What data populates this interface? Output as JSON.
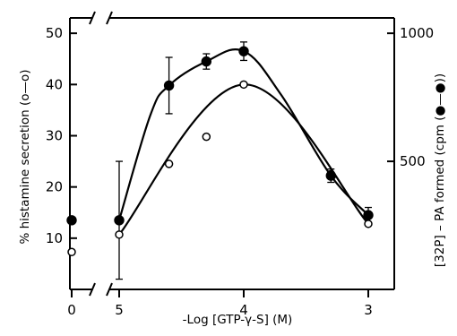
{
  "chart_data": {
    "type": "line",
    "xlabel": "-Log [GTP-γ-S] (M)",
    "ylabel_left": "% histamine secretion (o—o)",
    "ylabel_right": "[32P] – PA formed (cpm (●—●))",
    "x_ticks": [
      {
        "value": 0,
        "label": "0"
      },
      {
        "value": 5,
        "label": "5"
      },
      {
        "value": 4,
        "label": "4"
      },
      {
        "value": 3,
        "label": "3"
      }
    ],
    "x_axis_note": "axis broken between 0 and 5; -Log scale decreases left to right",
    "y_left_ticks": [
      10,
      20,
      30,
      40,
      50
    ],
    "y_left_lim": [
      0,
      53
    ],
    "y_right_ticks": [
      500,
      1000
    ],
    "y_right_lim": [
      0,
      1060
    ],
    "series": [
      {
        "name": "histamine secretion (o—o)",
        "marker": "open-circle",
        "axis": "left",
        "points": [
          {
            "x": 0,
            "y": 7.3
          },
          {
            "x": 5,
            "y": 10.7
          },
          {
            "x": 4.6,
            "y": 24.5
          },
          {
            "x": 4.3,
            "y": 29.8
          },
          {
            "x": 4,
            "y": 40
          },
          {
            "x": 3.3,
            "y": 22.5
          },
          {
            "x": 3,
            "y": 12.8
          }
        ],
        "curve_points": [
          {
            "x": 5,
            "y": 10.7
          },
          {
            "x": 4,
            "y": 40
          },
          {
            "x": 3,
            "y": 12.8
          }
        ]
      },
      {
        "name": "[32P]-PA formed (●—●)",
        "marker": "filled-circle",
        "axis": "left",
        "points": [
          {
            "x": 0,
            "y": 13.5
          },
          {
            "x": 5,
            "y": 13.5,
            "err": 11.5
          },
          {
            "x": 4.6,
            "y": 39.8,
            "err": 5.5
          },
          {
            "x": 4.3,
            "y": 44.5,
            "err": 1.5
          },
          {
            "x": 4,
            "y": 46.5,
            "err": 1.8
          },
          {
            "x": 3.3,
            "y": 22.2,
            "err": 1.3
          },
          {
            "x": 3,
            "y": 14.5,
            "err": 1.5
          }
        ],
        "curve_points": [
          {
            "x": 5,
            "y": 13.5
          },
          {
            "x": 4.75,
            "y": 34
          },
          {
            "x": 4.6,
            "y": 39.8
          },
          {
            "x": 4.3,
            "y": 44.5
          },
          {
            "x": 4,
            "y": 46.5
          },
          {
            "x": 3.7,
            "y": 38
          },
          {
            "x": 3.3,
            "y": 22.2
          },
          {
            "x": 3,
            "y": 14.5
          }
        ]
      }
    ]
  }
}
